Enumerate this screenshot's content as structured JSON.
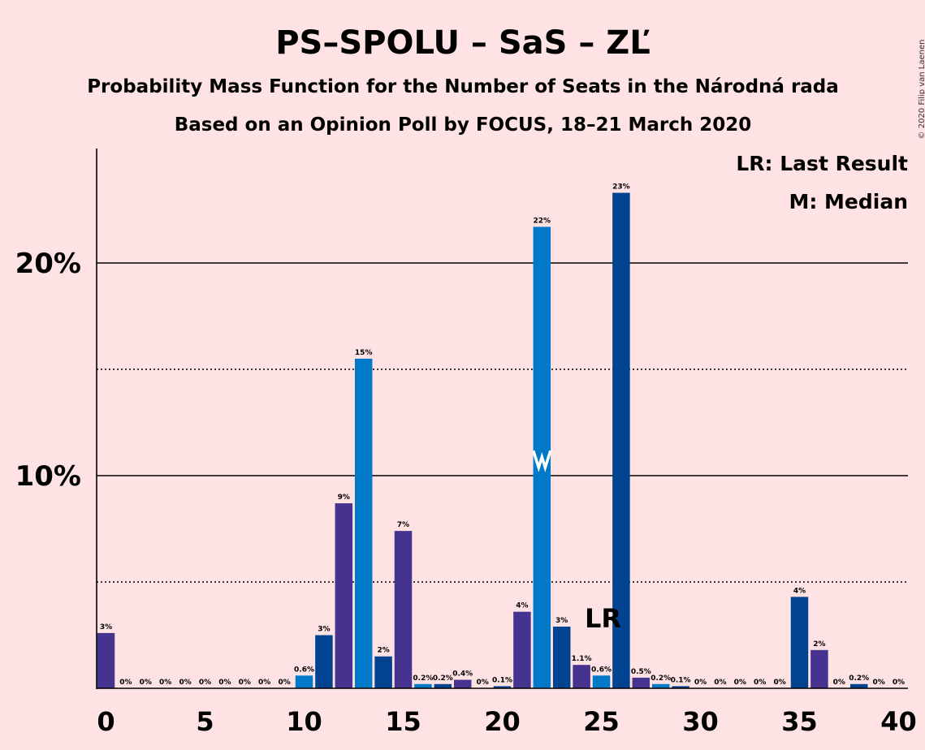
{
  "title": "PS–SPOLU – SaS – ZĽ",
  "subtitle": "Probability Mass Function for the Number of Seats in the Národná rada",
  "subtitle2": "Based on an Opinion Poll by FOCUS, 18–21 March 2020",
  "copyright": "© 2020 Filip van Laenen",
  "legend": {
    "last_result": "LR: Last Result",
    "median": "M: Median"
  },
  "markers": {
    "lr_label": "LR",
    "median_label": "M",
    "last_result_seat": 25,
    "median_seat": 22
  },
  "colors": {
    "background": "#FFE3E4",
    "purple": "#45338F",
    "blue": "#0079C8",
    "dark_blue": "#004491"
  },
  "chart_data": {
    "type": "bar",
    "xlim": [
      0,
      40
    ],
    "ylim": [
      0,
      25
    ],
    "y_ticks": [
      {
        "value": 10,
        "label": "10%",
        "style": "solid"
      },
      {
        "value": 20,
        "label": "20%",
        "style": "solid"
      }
    ],
    "y_dotted_lines": [
      5,
      15
    ],
    "x_ticks": [
      {
        "value": 0,
        "label": "0"
      },
      {
        "value": 5,
        "label": "5"
      },
      {
        "value": 10,
        "label": "10"
      },
      {
        "value": 15,
        "label": "15"
      },
      {
        "value": 20,
        "label": "20"
      },
      {
        "value": 25,
        "label": "25"
      },
      {
        "value": 30,
        "label": "30"
      },
      {
        "value": 35,
        "label": "35"
      },
      {
        "value": 40,
        "label": "40"
      }
    ],
    "bars": [
      {
        "seats": 0,
        "value": 2.6,
        "label": "3%",
        "color": "purple"
      },
      {
        "seats": 1,
        "value": 0,
        "label": "0%",
        "color": "blue"
      },
      {
        "seats": 2,
        "value": 0,
        "label": "0%",
        "color": "dark_blue"
      },
      {
        "seats": 3,
        "value": 0,
        "label": "0%",
        "color": "purple"
      },
      {
        "seats": 4,
        "value": 0,
        "label": "0%",
        "color": "blue"
      },
      {
        "seats": 5,
        "value": 0,
        "label": "0%",
        "color": "dark_blue"
      },
      {
        "seats": 6,
        "value": 0,
        "label": "0%",
        "color": "purple"
      },
      {
        "seats": 7,
        "value": 0,
        "label": "0%",
        "color": "blue"
      },
      {
        "seats": 8,
        "value": 0,
        "label": "0%",
        "color": "dark_blue"
      },
      {
        "seats": 9,
        "value": 0,
        "label": "0%",
        "color": "purple"
      },
      {
        "seats": 10,
        "value": 0.6,
        "label": "0.6%",
        "color": "blue"
      },
      {
        "seats": 11,
        "value": 2.5,
        "label": "3%",
        "color": "dark_blue"
      },
      {
        "seats": 12,
        "value": 8.7,
        "label": "9%",
        "color": "purple"
      },
      {
        "seats": 13,
        "value": 15.5,
        "label": "15%",
        "color": "blue"
      },
      {
        "seats": 14,
        "value": 1.5,
        "label": "2%",
        "color": "dark_blue"
      },
      {
        "seats": 15,
        "value": 7.4,
        "label": "7%",
        "color": "purple"
      },
      {
        "seats": 16,
        "value": 0.2,
        "label": "0.2%",
        "color": "blue"
      },
      {
        "seats": 17,
        "value": 0.2,
        "label": "0.2%",
        "color": "dark_blue"
      },
      {
        "seats": 18,
        "value": 0.4,
        "label": "0.4%",
        "color": "purple"
      },
      {
        "seats": 19,
        "value": 0,
        "label": "0%",
        "color": "blue"
      },
      {
        "seats": 20,
        "value": 0.1,
        "label": "0.1%",
        "color": "dark_blue"
      },
      {
        "seats": 21,
        "value": 3.6,
        "label": "4%",
        "color": "purple"
      },
      {
        "seats": 22,
        "value": 21.7,
        "label": "22%",
        "color": "blue"
      },
      {
        "seats": 23,
        "value": 2.9,
        "label": "3%",
        "color": "dark_blue"
      },
      {
        "seats": 24,
        "value": 1.1,
        "label": "1.1%",
        "color": "purple"
      },
      {
        "seats": 25,
        "value": 0.6,
        "label": "0.6%",
        "color": "blue"
      },
      {
        "seats": 26,
        "value": 23.3,
        "label": "23%",
        "color": "dark_blue"
      },
      {
        "seats": 27,
        "value": 0.5,
        "label": "0.5%",
        "color": "purple"
      },
      {
        "seats": 28,
        "value": 0.2,
        "label": "0.2%",
        "color": "blue"
      },
      {
        "seats": 29,
        "value": 0.1,
        "label": "0.1%",
        "color": "dark_blue"
      },
      {
        "seats": 30,
        "value": 0,
        "label": "0%",
        "color": "purple"
      },
      {
        "seats": 31,
        "value": 0,
        "label": "0%",
        "color": "blue"
      },
      {
        "seats": 32,
        "value": 0,
        "label": "0%",
        "color": "dark_blue"
      },
      {
        "seats": 33,
        "value": 0,
        "label": "0%",
        "color": "purple"
      },
      {
        "seats": 34,
        "value": 0,
        "label": "0%",
        "color": "blue"
      },
      {
        "seats": 35,
        "value": 4.3,
        "label": "4%",
        "color": "dark_blue"
      },
      {
        "seats": 36,
        "value": 1.8,
        "label": "2%",
        "color": "purple"
      },
      {
        "seats": 37,
        "value": 0,
        "label": "0%",
        "color": "blue"
      },
      {
        "seats": 38,
        "value": 0.2,
        "label": "0.2%",
        "color": "dark_blue"
      },
      {
        "seats": 39,
        "value": 0,
        "label": "0%",
        "color": "purple"
      },
      {
        "seats": 40,
        "value": 0,
        "label": "0%",
        "color": "blue"
      }
    ]
  }
}
